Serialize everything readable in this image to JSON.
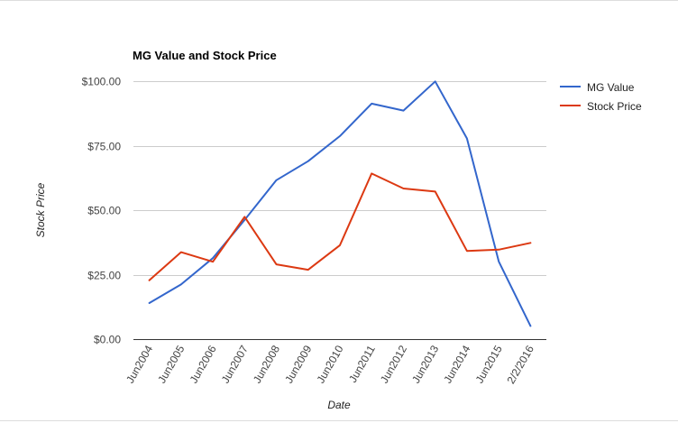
{
  "chart_data": {
    "type": "line",
    "title": "MG Value and Stock Price",
    "xlabel": "Date",
    "ylabel": "Stock Price",
    "categories": [
      "Jun2004",
      "Jun2005",
      "Jun2006",
      "Jun2007",
      "Jun2008",
      "Jun2009",
      "Jun2010",
      "Jun2011",
      "Jun2012",
      "Jun2013",
      "Jun2014",
      "Jun2015",
      "2/2/2016"
    ],
    "y_ticks": [
      "$0.00",
      "$25.00",
      "$50.00",
      "$75.00",
      "$100.00"
    ],
    "y_tick_values": [
      0,
      25,
      50,
      75,
      100
    ],
    "ylim": [
      0,
      100
    ],
    "grid": true,
    "legend_position": "right",
    "series": [
      {
        "name": "MG Value",
        "color": "#3366cc",
        "values": [
          14.0,
          21.2,
          31.4,
          46.2,
          61.6,
          69.0,
          78.7,
          91.3,
          88.6,
          99.9,
          77.8,
          30.1,
          5.1
        ]
      },
      {
        "name": "Stock Price",
        "color": "#dc3912",
        "values": [
          22.8,
          33.7,
          30.0,
          47.4,
          29.0,
          26.9,
          36.4,
          64.2,
          58.4,
          57.2,
          34.2,
          34.7,
          37.3
        ]
      }
    ]
  }
}
